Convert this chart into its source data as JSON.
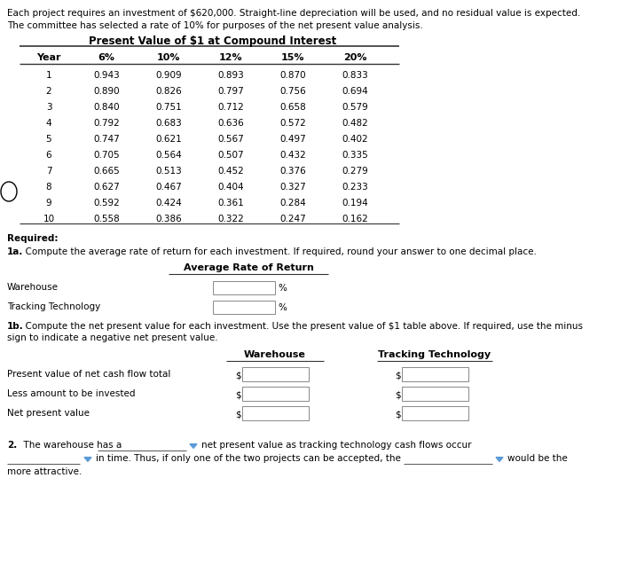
{
  "bg_color": "#ffffff",
  "intro_text_line1": "Each project requires an investment of $620,000. Straight-line depreciation will be used, and no residual value is expected.",
  "intro_text_line2": "The committee has selected a rate of 10% for purposes of the net present value analysis.",
  "table_title": "Present Value of $1 at Compound Interest",
  "table_headers": [
    "Year",
    "6%",
    "10%",
    "12%",
    "15%",
    "20%"
  ],
  "table_data": [
    [
      1,
      0.943,
      0.909,
      0.893,
      0.87,
      0.833
    ],
    [
      2,
      0.89,
      0.826,
      0.797,
      0.756,
      0.694
    ],
    [
      3,
      0.84,
      0.751,
      0.712,
      0.658,
      0.579
    ],
    [
      4,
      0.792,
      0.683,
      0.636,
      0.572,
      0.482
    ],
    [
      5,
      0.747,
      0.621,
      0.567,
      0.497,
      0.402
    ],
    [
      6,
      0.705,
      0.564,
      0.507,
      0.432,
      0.335
    ],
    [
      7,
      0.665,
      0.513,
      0.452,
      0.376,
      0.279
    ],
    [
      8,
      0.627,
      0.467,
      0.404,
      0.327,
      0.233
    ],
    [
      9,
      0.592,
      0.424,
      0.361,
      0.284,
      0.194
    ],
    [
      10,
      0.558,
      0.386,
      0.322,
      0.247,
      0.162
    ]
  ],
  "required_label": "Required:",
  "q1a_bold": "1a.",
  "q1a_rest": "  Compute the average rate of return for each investment. If required, round your answer to one decimal place.",
  "avg_rate_title": "Average Rate of Return",
  "avg_rate_rows": [
    "Warehouse",
    "Tracking Technology"
  ],
  "avg_rate_suffix": "%",
  "q1b_bold": "1b.",
  "q1b_rest": "  Compute the net present value for each investment. Use the present value of $1 table above. If required, use the minus",
  "q1b_text2": "sign to indicate a negative net present value.",
  "npv_col1": "Warehouse",
  "npv_col2": "Tracking Technology",
  "npv_rows": [
    "Present value of net cash flow total",
    "Less amount to be invested",
    "Net present value"
  ],
  "npv_prefix": "$",
  "q2_bold": "2.",
  "q2_text1": "  The warehouse has a",
  "q2_text2": "net present value as tracking technology cash flows occur",
  "q2_text3": "in time. Thus, if only one of the two projects can be accepted, the",
  "q2_text4": "would be the",
  "q2_text5": "more attractive.",
  "fs_body": 7.5,
  "fs_bold": 7.5,
  "fs_table": 7.5,
  "fs_header": 8.0,
  "fs_title": 8.5
}
